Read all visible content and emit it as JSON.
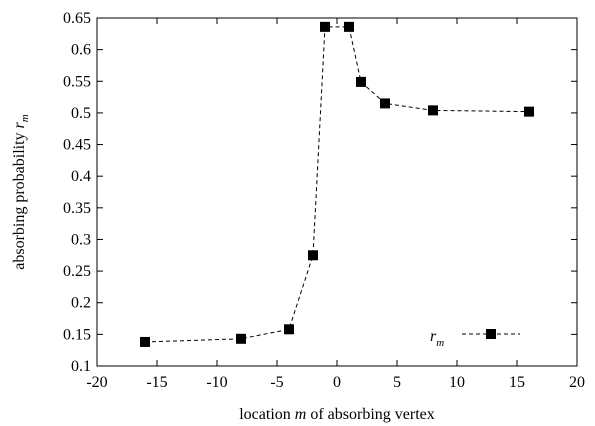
{
  "chart_data": {
    "type": "line",
    "title": "",
    "xlabel": {
      "before": "location ",
      "var": "m",
      "after": " of absorbing vertex"
    },
    "ylabel": {
      "before": "absorbing probability ",
      "var": "r",
      "sub": "m"
    },
    "xlim": [
      -20,
      20
    ],
    "ylim": [
      0.1,
      0.65
    ],
    "xticks": [
      -20,
      -15,
      -10,
      -5,
      0,
      5,
      10,
      15,
      20
    ],
    "yticks": [
      0.1,
      0.15,
      0.2,
      0.25,
      0.3,
      0.35,
      0.4,
      0.45,
      0.5,
      0.55,
      0.6,
      0.65
    ],
    "grid": false,
    "legend_position": "bottom-right",
    "series": [
      {
        "name": {
          "var": "r",
          "sub": "m"
        },
        "style": "dashed line with square markers",
        "color": "#000000",
        "x": [
          -16,
          -8,
          -4,
          -2,
          -1,
          1,
          2,
          4,
          8,
          16
        ],
        "y": [
          0.138,
          0.143,
          0.158,
          0.275,
          0.636,
          0.636,
          0.549,
          0.515,
          0.504,
          0.502
        ]
      }
    ]
  }
}
